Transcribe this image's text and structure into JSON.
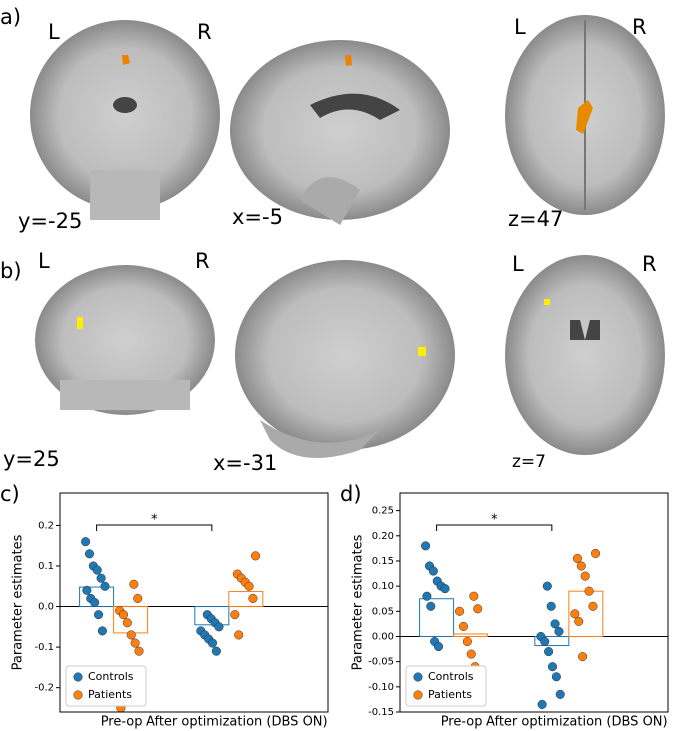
{
  "panels": {
    "a": {
      "label": "a)",
      "left": "L",
      "right": "R",
      "coronal": "y=-25",
      "sagittal": "x=-5",
      "axial": "z=47",
      "axial_left": "L",
      "axial_right": "R"
    },
    "b": {
      "label": "b)",
      "left": "L",
      "right": "R",
      "coronal": "y=25",
      "sagittal": "x=-31",
      "axial": "z=7",
      "axial_left": "L",
      "axial_right": "R"
    }
  },
  "chart_data": [
    {
      "type": "bar",
      "panel": "c)",
      "y_label": "Parameter estimates",
      "annotation": "*",
      "categories": [
        "Pre-op",
        "After optimization (DBS ON)"
      ],
      "ylim": [
        -0.26,
        0.28
      ],
      "yticks": [
        -0.2,
        -0.1,
        {
          "value": 0,
          "label": "0.0"
        },
        0.1,
        0.2
      ],
      "legend": "lower left",
      "series": [
        {
          "name": "Controls",
          "color": "#1f77b4",
          "values": [
            0.048,
            -0.045
          ],
          "points": [
            [
              0.16,
              0.13,
              0.1,
              0.09,
              0.07,
              0.05,
              0.04,
              0.02,
              0.01,
              -0.02,
              -0.06
            ],
            [
              -0.02,
              -0.03,
              -0.04,
              -0.05,
              -0.06,
              -0.07,
              -0.08,
              -0.09,
              -0.11
            ]
          ]
        },
        {
          "name": "Patients",
          "color": "#ff7f0e",
          "values": [
            -0.065,
            0.037
          ],
          "points": [
            [
              0.055,
              0.02,
              -0.01,
              -0.02,
              -0.04,
              -0.07,
              -0.09,
              -0.11,
              -0.25
            ],
            [
              0.125,
              0.08,
              0.07,
              0.06,
              0.05,
              0.02,
              -0.02,
              -0.07
            ]
          ]
        }
      ]
    },
    {
      "type": "bar",
      "panel": "d)",
      "y_label": "Parameter estimates",
      "annotation": "*",
      "categories": [
        "Pre-op",
        "After optimization (DBS ON)"
      ],
      "ylim": [
        -0.15,
        0.285
      ],
      "yticks": [
        -0.15,
        {
          "value": -0.1,
          "label": "-0.10"
        },
        -0.05,
        {
          "value": 0,
          "label": "0.00"
        },
        0.05,
        {
          "value": 0.1,
          "label": "0.10"
        },
        0.15,
        {
          "value": 0.2,
          "label": "0.20"
        },
        0.25
      ],
      "legend": "lower left",
      "series": [
        {
          "name": "Controls",
          "color": "#1f77b4",
          "values": [
            0.075,
            -0.018
          ],
          "points": [
            [
              0.18,
              0.14,
              0.13,
              0.11,
              0.1,
              0.095,
              0.08,
              0.06,
              -0.01,
              -0.02
            ],
            [
              0.1,
              0.06,
              0.025,
              0.01,
              0.0,
              -0.01,
              -0.03,
              -0.06,
              -0.08,
              -0.115,
              -0.135
            ]
          ]
        },
        {
          "name": "Patients",
          "color": "#ff7f0e",
          "values": [
            0.005,
            0.09
          ],
          "points": [
            [
              0.08,
              0.055,
              0.05,
              0.02,
              -0.01,
              -0.035,
              -0.06,
              -0.075
            ],
            [
              0.165,
              0.155,
              0.14,
              0.12,
              0.09,
              0.06,
              0.045,
              0.03,
              -0.04
            ]
          ]
        }
      ]
    }
  ]
}
